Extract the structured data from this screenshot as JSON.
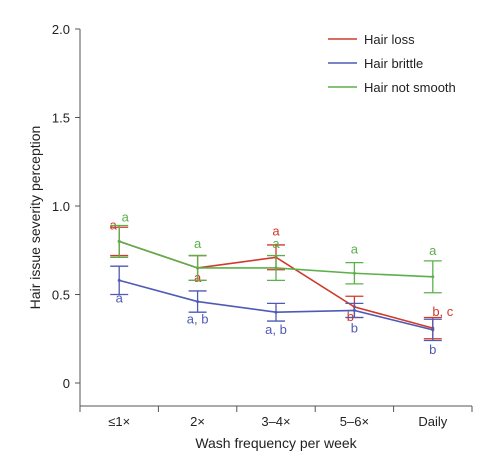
{
  "chart_data": {
    "type": "line",
    "xlabel": "Wash frequency per week",
    "ylabel": "Hair issue severity perception",
    "categories": [
      "≤1×",
      "2×",
      "3–4×",
      "5–6×",
      "Daily"
    ],
    "ylim": [
      0,
      2.0
    ],
    "yticks": [
      0,
      0.5,
      1.0,
      1.5,
      2.0
    ],
    "ytick_labels": [
      "0",
      "0.5",
      "1.0",
      "1.5",
      "2.0"
    ],
    "legend_position": "top-right",
    "grid": false,
    "series": [
      {
        "name": "Hair loss",
        "color": "#d03a2b",
        "values": [
          0.8,
          0.65,
          0.71,
          0.43,
          0.31
        ],
        "errors": [
          0.08,
          0.07,
          0.07,
          0.06,
          0.06
        ],
        "letters": [
          "a",
          "a",
          "a",
          "b",
          "b, c"
        ]
      },
      {
        "name": "Hair brittle",
        "color": "#4f5ab4",
        "values": [
          0.58,
          0.46,
          0.4,
          0.41,
          0.3
        ],
        "errors": [
          0.08,
          0.06,
          0.05,
          0.04,
          0.06
        ],
        "letters": [
          "a",
          "a, b",
          "a, b",
          "b",
          "b"
        ]
      },
      {
        "name": "Hair not smooth",
        "color": "#5cb04a",
        "values": [
          0.8,
          0.65,
          0.65,
          0.62,
          0.6
        ],
        "errors": [
          0.09,
          0.07,
          0.07,
          0.06,
          0.09
        ],
        "letters": [
          "a",
          "a",
          "a",
          "a",
          "a"
        ]
      }
    ]
  }
}
